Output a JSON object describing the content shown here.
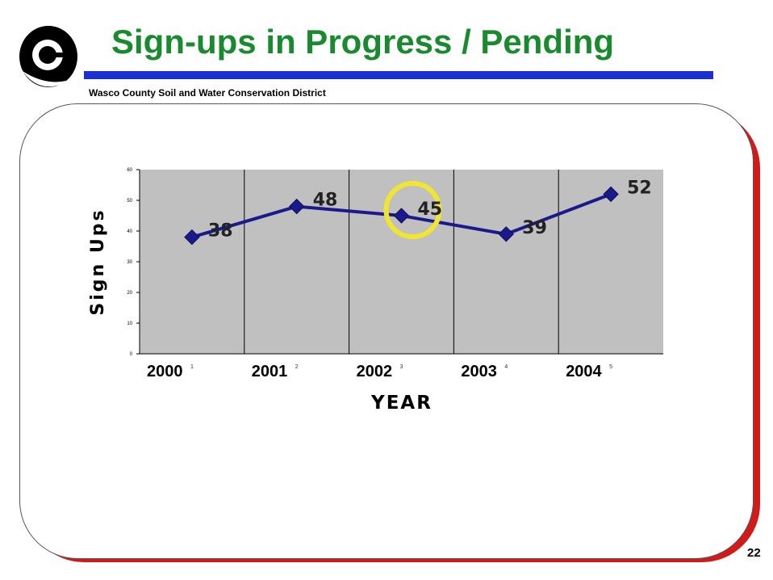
{
  "slide": {
    "title": "Sign-ups in Progress / Pending",
    "organization": "Wasco County Soil and Water Conservation District",
    "page_number": "22"
  },
  "logo": {
    "icon": "district-swirl-logo-icon"
  },
  "colors": {
    "title": "#1a8a2e",
    "title_rule": "#1c2fd1",
    "frame_shadow": "#d11a1a",
    "plot_area": "#c0c0c0",
    "series_line": "#1a1a8c",
    "highlight_circle": "#f2e531"
  },
  "chart_data": {
    "type": "line",
    "categories": [
      "2000",
      "2001",
      "2002",
      "2003",
      "2004"
    ],
    "x_index_labels": [
      "1",
      "2",
      "3",
      "4",
      "5"
    ],
    "values": [
      38,
      48,
      45,
      39,
      52
    ],
    "data_labels": [
      "38",
      "48",
      "45",
      "39",
      "52"
    ],
    "xlabel": "YEAR",
    "ylabel": "Sign Ups",
    "ylim": [
      0,
      60
    ],
    "yticks": [
      0,
      10,
      20,
      30,
      40,
      50,
      60
    ],
    "grid": "vertical",
    "legend": "none",
    "highlight": {
      "category": "2002",
      "shape": "circle"
    }
  }
}
